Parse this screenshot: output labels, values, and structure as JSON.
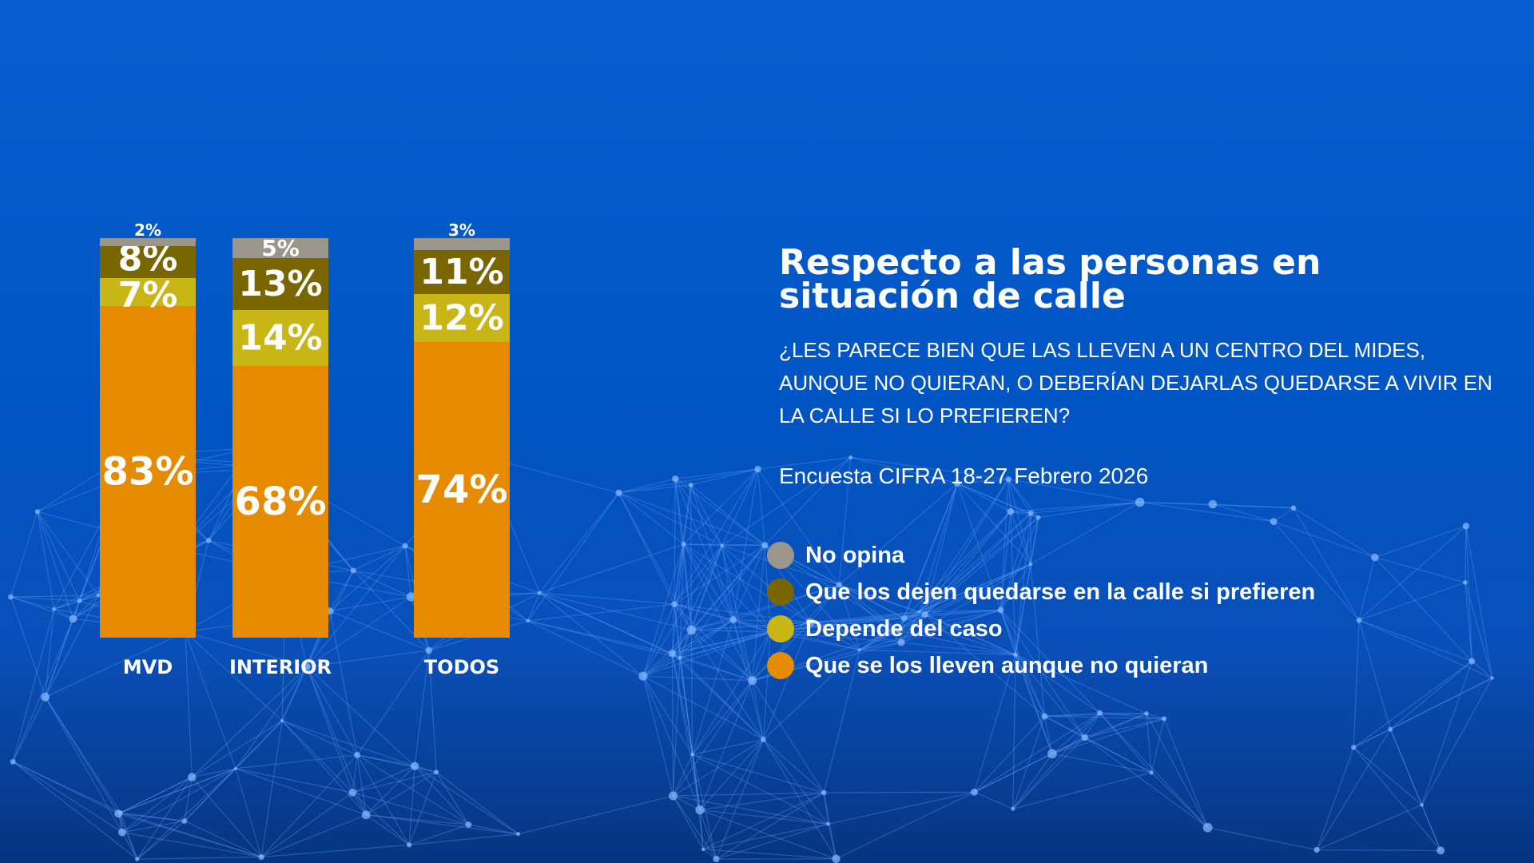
{
  "title": "Respecto a las personas en situación de calle",
  "question": "¿LES PARECE BIEN QUE LAS LLEVEN A UN CENTRO DEL MIDES, AUNQUE NO QUIERAN, O DEBERÍAN DEJARLAS QUEDARSE A VIVIR EN LA CALLE SI LO PREFIEREN?",
  "source": "Encuesta CIFRA 18-27 Febrero 2026",
  "chart_data": {
    "type": "bar",
    "stacked": true,
    "categories": [
      "MVD",
      "INTERIOR",
      "TODOS"
    ],
    "ylim": [
      0,
      100
    ],
    "grid": false,
    "legend_placement": "right",
    "series": [
      {
        "name": "Que se los lleven aunque no quieran",
        "color": "#e68a00",
        "values": [
          83,
          68,
          74
        ]
      },
      {
        "name": "Depende del caso",
        "color": "#c8b516",
        "values": [
          7,
          14,
          12
        ]
      },
      {
        "name": "Que los dejen quedarse en la calle si prefieren",
        "color": "#7a6600",
        "values": [
          8,
          13,
          11
        ]
      },
      {
        "name": "No opina",
        "color": "#9a968c",
        "values": [
          2,
          5,
          3
        ]
      }
    ]
  },
  "legend": [
    {
      "label": "No opina",
      "color": "#9a968c"
    },
    {
      "label": "Que los dejen quedarse en la calle si prefieren",
      "color": "#7a6600"
    },
    {
      "label": "Depende del caso",
      "color": "#c8b516"
    },
    {
      "label": "Que se los lleven aunque no quieran",
      "color": "#e68a00"
    }
  ]
}
